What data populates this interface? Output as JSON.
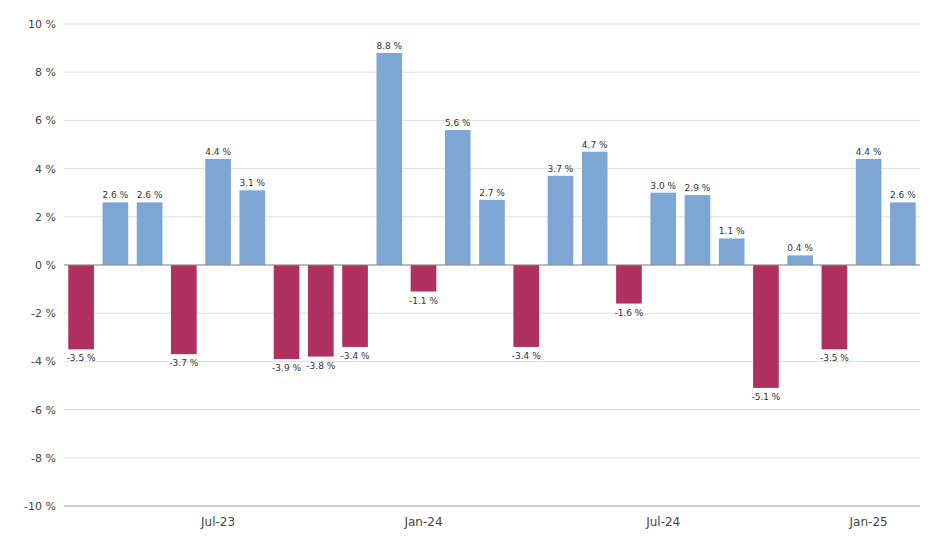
{
  "chart_data": {
    "type": "bar",
    "categories": [
      null,
      null,
      null,
      null,
      "Jul-23",
      null,
      null,
      null,
      null,
      null,
      "Jan-24",
      null,
      null,
      null,
      null,
      null,
      null,
      "Jul-24",
      null,
      null,
      null,
      null,
      null,
      "Jan-25",
      null
    ],
    "values": [
      -3.5,
      2.6,
      2.6,
      -3.7,
      4.4,
      3.1,
      -3.9,
      -3.8,
      -3.4,
      8.8,
      -1.1,
      5.6,
      2.7,
      -3.4,
      3.7,
      4.7,
      -1.6,
      3.0,
      2.9,
      1.1,
      -5.1,
      0.4,
      -3.5,
      4.4,
      2.6
    ],
    "value_labels": [
      "-3.5 %",
      "2.6 %",
      "2.6 %",
      "-3.7 %",
      "4.4 %",
      "3.1 %",
      "-3.9 %",
      "-3.8 %",
      "-3.4 %",
      "8.8 %",
      "-1.1 %",
      "5.6 %",
      "2.7 %",
      "-3.4 %",
      "3.7 %",
      "4.7 %",
      "-1.6 %",
      "3.0 %",
      "2.9 %",
      "1.1 %",
      "-5.1 %",
      "0.4 %",
      "-3.5 %",
      "4.4 %",
      "2.6 %"
    ],
    "colors": [
      "#B03060",
      "#7EA6D4",
      "#7EA6D4",
      "#B03060",
      "#7EA6D4",
      "#7EA6D4",
      "#B03060",
      "#B03060",
      "#B03060",
      "#7EA6D4",
      "#B03060",
      "#7EA6D4",
      "#7EA6D4",
      "#B03060",
      "#7EA6D4",
      "#7EA6D4",
      "#B03060",
      "#7EA6D4",
      "#7EA6D4",
      "#7EA6D4",
      "#B03060",
      "#7EA6D4",
      "#B03060",
      "#7EA6D4",
      "#7EA6D4"
    ],
    "ylim": [
      -10,
      10
    ],
    "yticks": [
      {
        "value": -10,
        "label": "-10 %"
      },
      {
        "value": -8,
        "label": "-8 %"
      },
      {
        "value": -6,
        "label": "-6 %"
      },
      {
        "value": -4,
        "label": "-4 %"
      },
      {
        "value": -2,
        "label": "-2 %"
      },
      {
        "value": 0,
        "label": "0 %"
      },
      {
        "value": 2,
        "label": "2 %"
      },
      {
        "value": 4,
        "label": "4 %"
      },
      {
        "value": 6,
        "label": "6 %"
      },
      {
        "value": 8,
        "label": "8 %"
      },
      {
        "value": 10,
        "label": "10 %"
      }
    ],
    "grid": true,
    "data_labels": true
  }
}
